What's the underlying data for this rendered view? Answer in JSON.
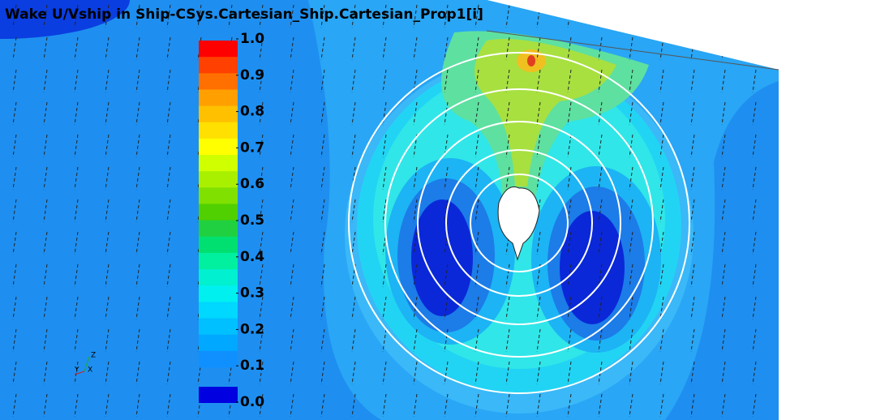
{
  "title": "Wake U/Vship in Ship-CSys.Cartesian_Ship.Cartesian_Prop1[i]",
  "legend": {
    "ticks": [
      {
        "value": 1,
        "label": "1.0"
      },
      {
        "value": 0.9,
        "label": "0.9"
      },
      {
        "value": 0.8,
        "label": "0.8"
      },
      {
        "value": 0.7,
        "label": "0.7"
      },
      {
        "value": 0.6,
        "label": "0.6"
      },
      {
        "value": 0.5,
        "label": "0.5"
      },
      {
        "value": 0.4,
        "label": "0.4"
      },
      {
        "value": 0.3,
        "label": "0.3"
      },
      {
        "value": 0.2,
        "label": "0.2"
      },
      {
        "value": 0.1,
        "label": "0.1"
      },
      {
        "value": 0,
        "label": "0.0"
      }
    ]
  },
  "triad": {
    "labels": [
      "Z",
      "Y",
      "X"
    ]
  }
}
